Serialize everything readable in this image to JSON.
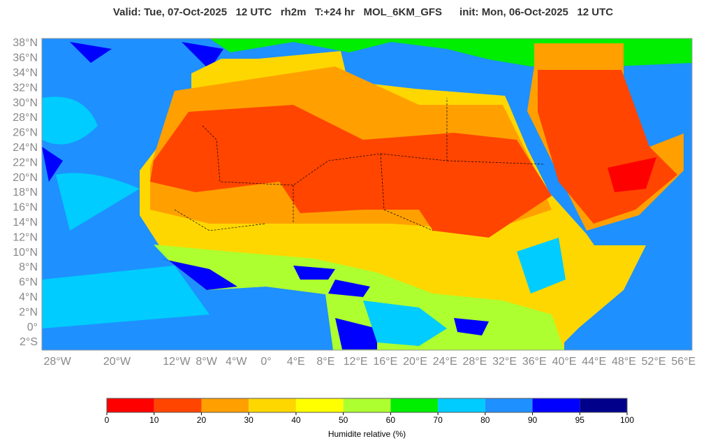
{
  "header": {
    "title": "Valid: Tue, 07-Oct-2025   12 UTC   rh2m   T:+24 hr   MOL_6KM_GFS      init: Mon, 06-Oct-2025   12 UTC"
  },
  "map": {
    "lat_labels": [
      "38°N",
      "36°N",
      "34°N",
      "32°N",
      "30°N",
      "28°N",
      "26°N",
      "24°N",
      "22°N",
      "20°N",
      "18°N",
      "16°N",
      "14°N",
      "12°N",
      "10°N",
      "8°N",
      "6°N",
      "4°N",
      "2°N",
      "0°",
      "2°S"
    ],
    "lon_labels": [
      "28°W",
      "20°W",
      "12°W",
      "8°W",
      "4°W",
      "0°",
      "4°E",
      "8°E",
      "12°E",
      "16°E",
      "20°E",
      "24°E",
      "28°E",
      "32°E",
      "36°E",
      "40°E",
      "44°E",
      "48°E",
      "52°E",
      "56°E"
    ]
  },
  "colorbar": {
    "ticks": [
      0,
      10,
      20,
      30,
      40,
      50,
      60,
      70,
      80,
      90,
      95,
      100
    ],
    "colors": [
      "#ff0000",
      "#ff4500",
      "#ffa000",
      "#ffd700",
      "#ffff00",
      "#adff2f",
      "#00ee00",
      "#00ccff",
      "#1e90ff",
      "#0000ff",
      "#00008b"
    ],
    "label": "Humidite relative (%)"
  }
}
